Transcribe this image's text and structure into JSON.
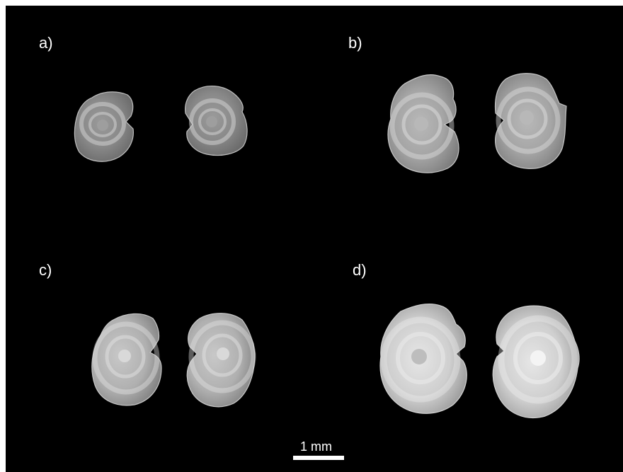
{
  "figure": {
    "background": "#000000",
    "panels": [
      {
        "label": "a)"
      },
      {
        "label": "b)"
      },
      {
        "label": "c)"
      },
      {
        "label": "d)"
      }
    ],
    "scale_bar": {
      "label": "1 mm"
    }
  }
}
